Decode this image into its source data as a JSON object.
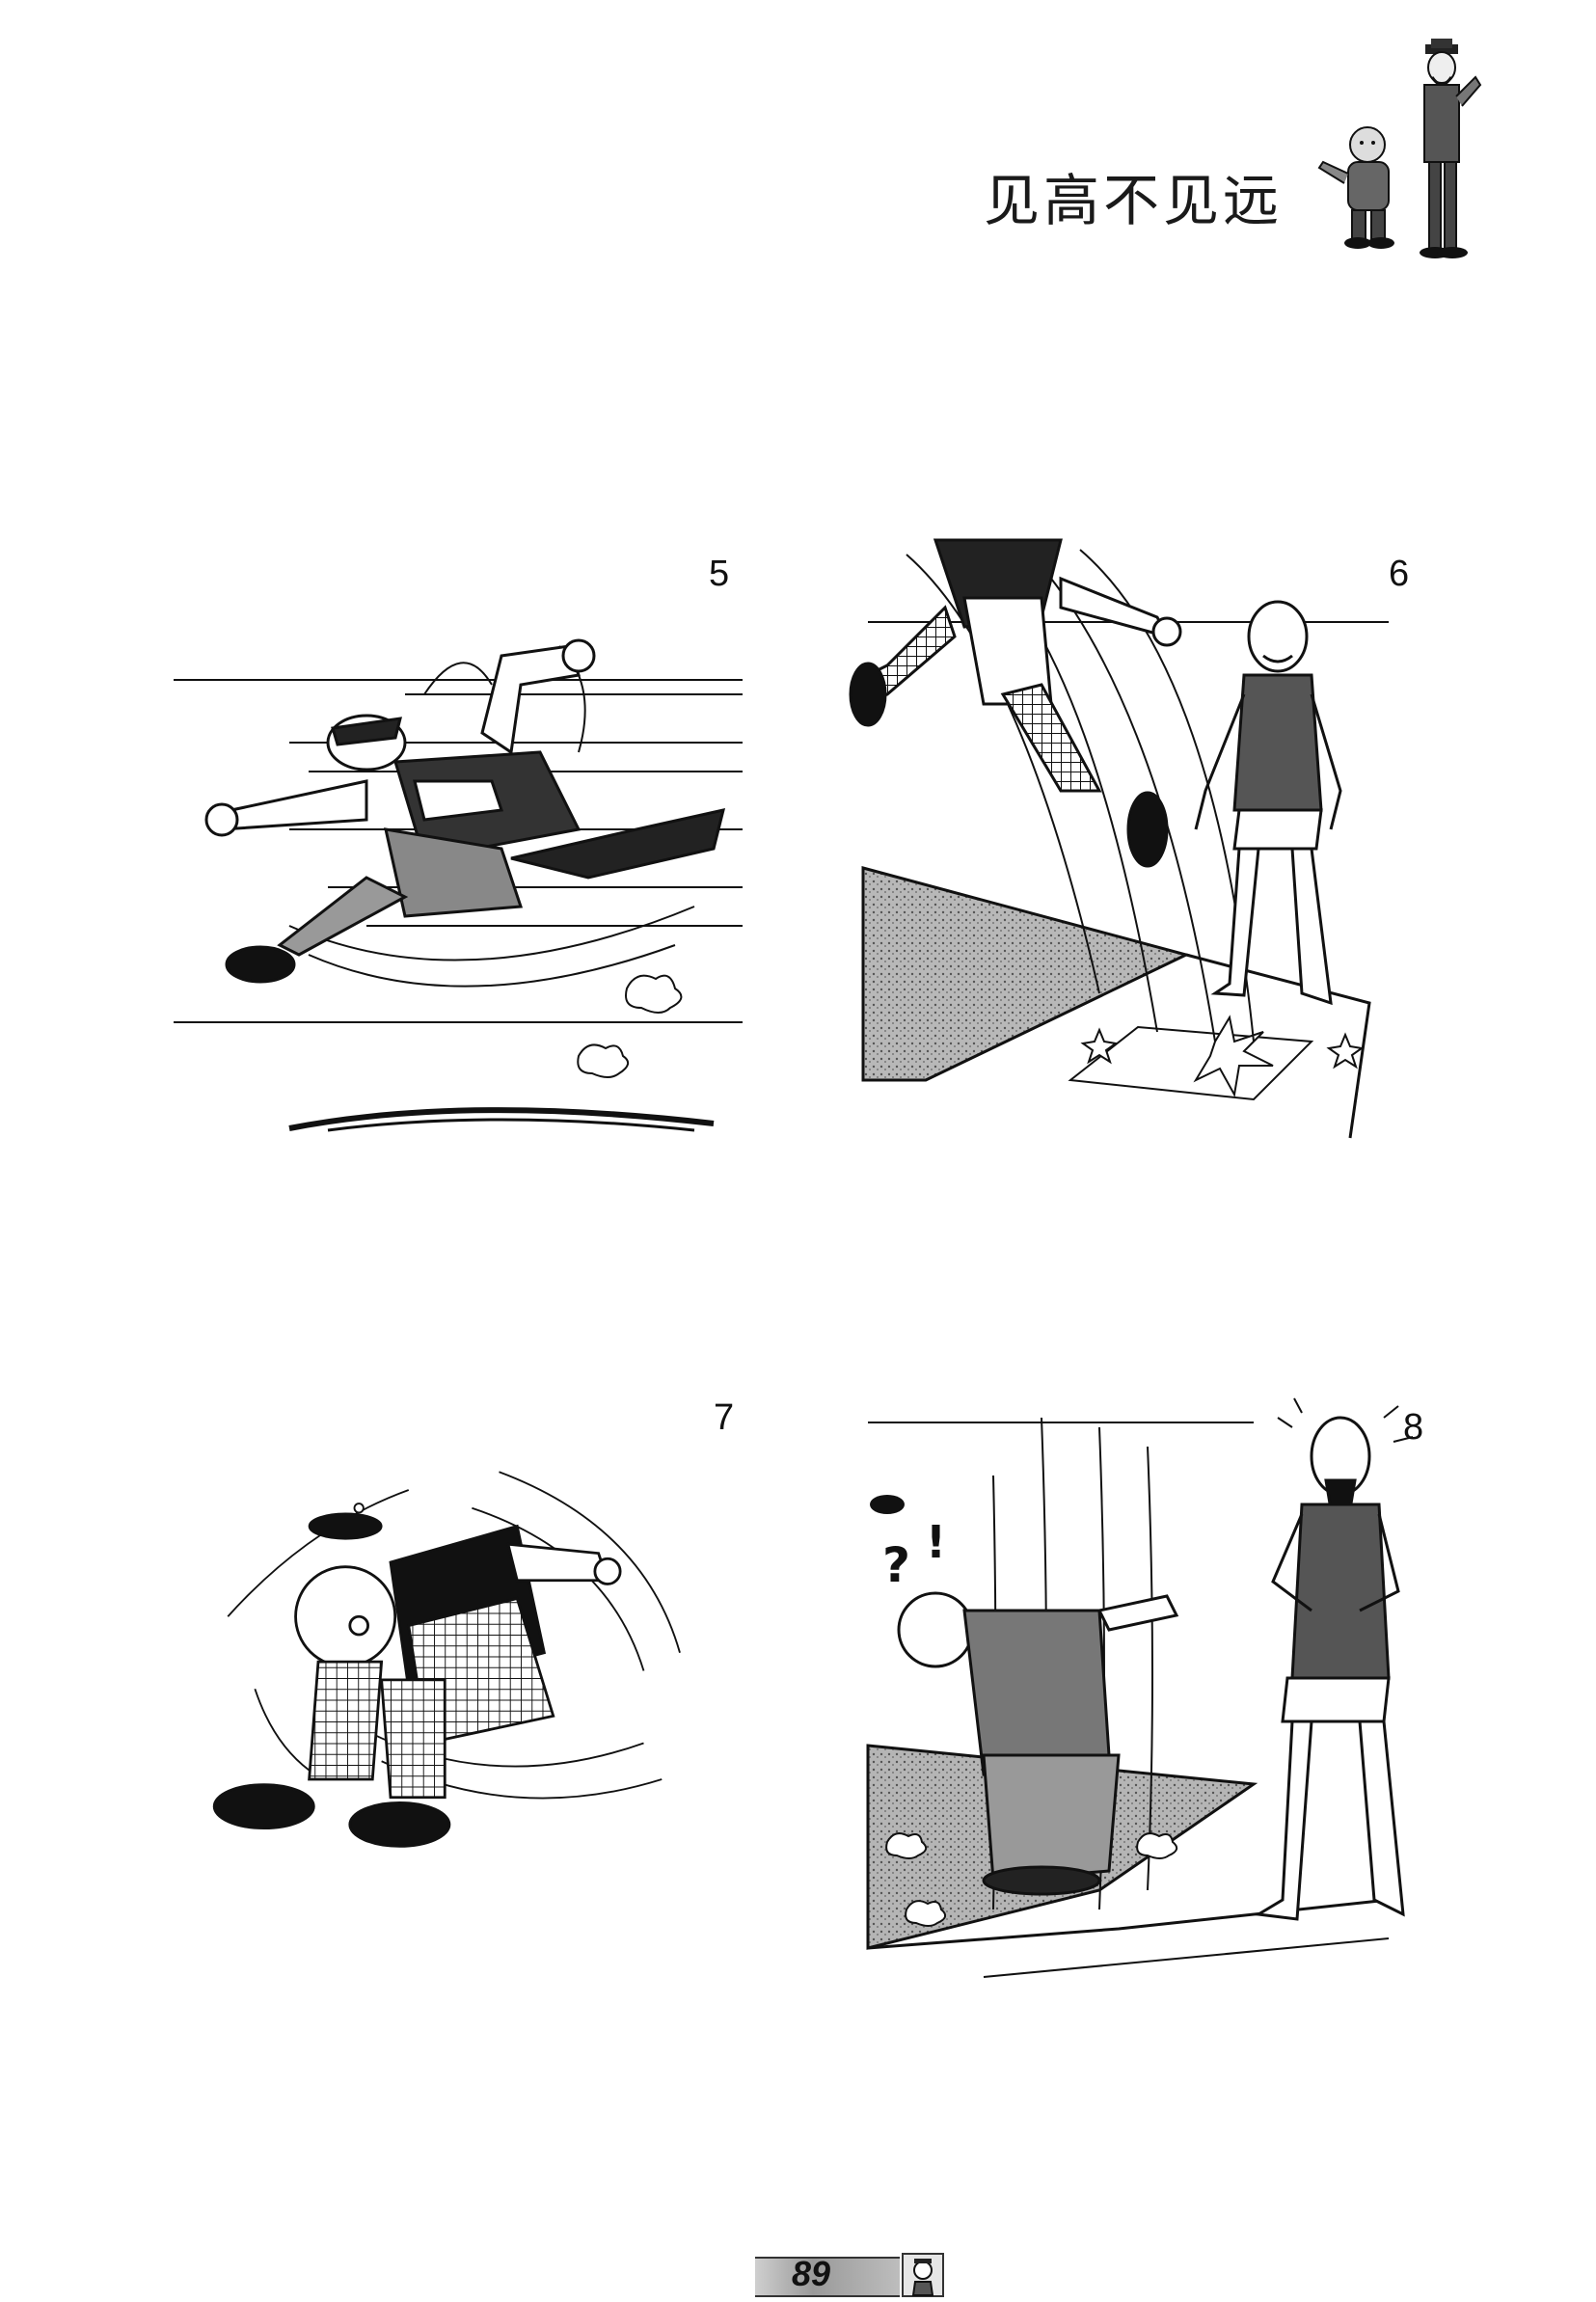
{
  "page": {
    "title": "见高不见远",
    "page_number": "89"
  },
  "panels": [
    {
      "number": "5"
    },
    {
      "number": "6"
    },
    {
      "number": "7"
    },
    {
      "number": "8"
    }
  ],
  "icons": {
    "title_art": "two-characters-icon",
    "footer_art": "character-face-icon"
  }
}
